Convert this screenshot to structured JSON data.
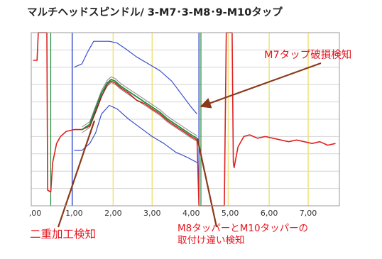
{
  "title": "マルチヘッドスピンドル/ 3-M7･3-M8･9-M10タップ",
  "annotations": {
    "m7_breakage": "M7タップ破損検知",
    "double_machining": "二重加工検知",
    "mismatch_line1": "M8タッパーとM10タッパーの",
    "mismatch_line2": "取付け違い検知"
  },
  "colors": {
    "signal": "#e02020",
    "signal_ref": "#1f8a3a",
    "envelope": "#3a4fcf",
    "marker_blue": "#3a4fcf",
    "marker_yellow": "#f0e27a",
    "arrow": "#8a3a1a",
    "annotation_text": "#e8141e",
    "grid": "#d4d4d4"
  },
  "chart_data": {
    "type": "line",
    "title": "マルチヘッドスピンドル/ 3-M7･3-M8･9-M10タップ",
    "xlabel": "",
    "ylabel": "",
    "x_tick_labels": [
      ",00",
      "1,00",
      "2,00",
      "3,00",
      "4,00",
      "5,00",
      "6,00",
      "7,00"
    ],
    "x_ticks": [
      0,
      1,
      2,
      3,
      4,
      5,
      6,
      7
    ],
    "xlim": [
      -0.1,
      7.8
    ],
    "ylim": [
      0,
      10
    ],
    "grid": true,
    "legend": "none",
    "vertical_markers": {
      "blue": [
        0.95,
        4.2
      ],
      "yellow": [
        2.0,
        3.0,
        4.95,
        6.0,
        7.0
      ],
      "green": [
        0.4,
        4.25
      ]
    },
    "series": [
      {
        "x": [
          -0.05,
          0.05,
          0.08,
          0.3,
          0.32,
          0.4,
          0.45,
          0.55,
          0.65,
          0.8,
          1.0,
          1.2,
          1.4,
          1.55,
          1.7,
          1.85,
          1.95,
          2.05,
          2.2,
          2.4,
          2.6,
          2.8,
          3.0,
          3.2,
          3.4,
          3.6,
          3.8,
          4.0,
          4.15,
          4.2,
          4.22,
          4.5,
          4.85,
          4.9,
          5.05,
          5.08,
          5.1,
          5.2,
          5.35,
          5.5,
          5.7,
          5.9,
          6.1,
          6.3,
          6.5,
          6.7,
          6.9,
          7.1,
          7.3,
          7.5,
          7.7
        ],
        "y": [
          8.4,
          8.4,
          10,
          10,
          0.9,
          0.8,
          2.5,
          3.6,
          4.0,
          4.3,
          4.4,
          4.4,
          4.6,
          5.4,
          6.3,
          7.0,
          7.2,
          7.1,
          6.8,
          6.5,
          6.1,
          5.9,
          5.6,
          5.3,
          4.9,
          4.6,
          4.3,
          4.0,
          3.8,
          0,
          0,
          0,
          0,
          10,
          10,
          2.5,
          2.2,
          3.4,
          4.0,
          4.1,
          3.9,
          4.0,
          3.9,
          3.8,
          3.7,
          3.8,
          3.7,
          3.6,
          3.7,
          3.5,
          3.6
        ]
      },
      {
        "x": [
          1.2,
          1.4,
          1.55,
          1.7,
          1.85,
          1.95,
          2.05,
          2.2,
          2.4,
          2.6,
          2.8,
          3.0,
          3.2,
          3.4,
          3.6,
          3.8,
          4.0,
          4.15
        ],
        "y": [
          4.4,
          4.7,
          5.6,
          6.5,
          7.1,
          7.3,
          7.2,
          6.9,
          6.6,
          6.3,
          6.0,
          5.7,
          5.4,
          5.0,
          4.7,
          4.4,
          4.1,
          3.9
        ]
      },
      {
        "x": [
          1.0,
          1.2,
          1.35,
          1.5,
          1.7,
          1.9,
          2.1,
          2.3,
          2.6,
          2.9,
          3.2,
          3.5,
          3.8,
          4.0,
          4.15
        ],
        "y": [
          8.0,
          8.2,
          8.9,
          9.5,
          9.5,
          9.5,
          9.4,
          9.1,
          8.6,
          8.2,
          7.8,
          7.2,
          6.3,
          5.7,
          5.3
        ]
      },
      {
        "x": [
          1.0,
          1.2,
          1.4,
          1.55,
          1.7,
          1.9,
          2.1,
          2.4,
          2.7,
          3.0,
          3.3,
          3.6,
          3.9,
          4.15
        ],
        "y": [
          3.2,
          3.2,
          3.6,
          4.2,
          5.3,
          5.8,
          5.6,
          5.0,
          4.5,
          4.0,
          3.6,
          3.1,
          2.8,
          2.5
        ]
      }
    ]
  }
}
